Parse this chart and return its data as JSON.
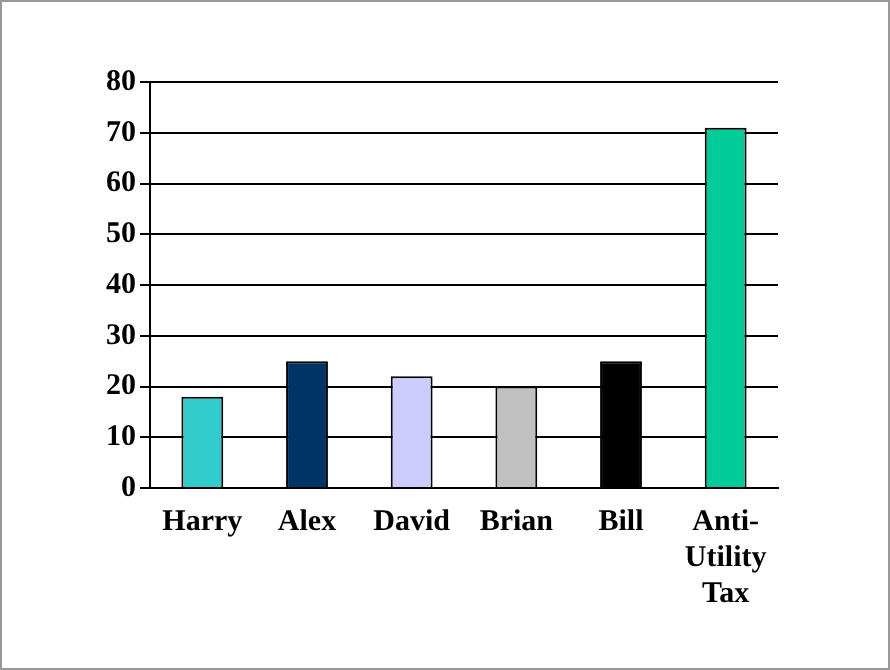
{
  "chart_data": {
    "type": "bar",
    "categories": [
      "Harry",
      "Alex",
      "David",
      "Brian",
      "Bill",
      "Anti-Utility Tax"
    ],
    "values": [
      18,
      25,
      22,
      20,
      25,
      71
    ],
    "colors": [
      "#33cccc",
      "#003366",
      "#ccccff",
      "#c0c0c0",
      "#000000",
      "#00cc99"
    ],
    "ylim": [
      0,
      80
    ],
    "yticks": [
      0,
      10,
      20,
      30,
      40,
      50,
      60,
      70,
      80
    ],
    "grid": "y",
    "legend": false
  }
}
